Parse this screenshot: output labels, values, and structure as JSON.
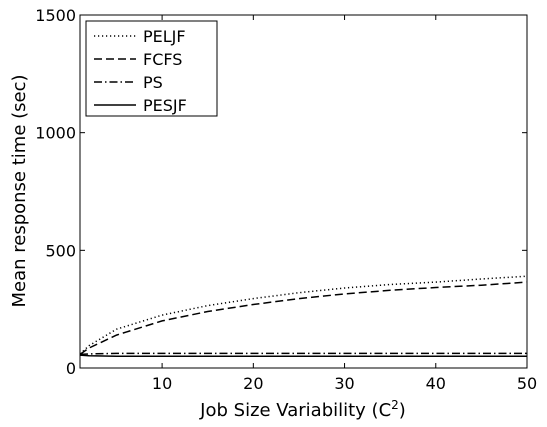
{
  "chart_data": {
    "type": "line",
    "xlabel": "Job Size Variability (C²)",
    "ylabel": "Mean response time (sec)",
    "xlim": [
      1,
      50
    ],
    "ylim": [
      0,
      1500
    ],
    "xticks": [
      10,
      20,
      30,
      40,
      50
    ],
    "yticks": [
      0,
      500,
      1000,
      1500
    ],
    "grid": false,
    "legend_position": "top-left",
    "x": [
      1,
      2,
      5,
      10,
      15,
      20,
      25,
      30,
      35,
      40,
      45,
      50
    ],
    "series": [
      {
        "name": "PELJF",
        "style": "dotted",
        "values": [
          60,
          95,
          165,
          225,
          265,
          295,
          320,
          340,
          355,
          365,
          378,
          390
        ]
      },
      {
        "name": "FCFS",
        "style": "dashed",
        "values": [
          58,
          85,
          140,
          200,
          240,
          270,
          295,
          315,
          330,
          342,
          352,
          365
        ]
      },
      {
        "name": "PS",
        "style": "dashdot",
        "values": [
          58,
          60,
          62,
          62,
          62,
          62,
          62,
          62,
          62,
          62,
          62,
          62
        ]
      },
      {
        "name": "PESJF",
        "style": "solid",
        "values": [
          55,
          52,
          50,
          50,
          50,
          50,
          50,
          50,
          50,
          50,
          50,
          50
        ]
      }
    ]
  }
}
